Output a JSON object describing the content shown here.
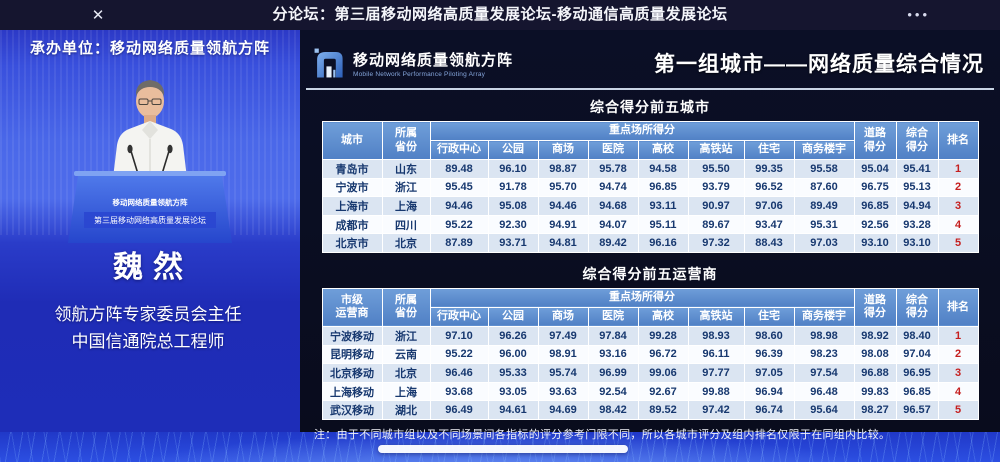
{
  "topbar": {
    "close_glyph": "✕",
    "title": "分论坛：第三届移动网络高质量发展论坛-移动通信高质量发展论坛",
    "more_glyph": "•••"
  },
  "left_panel": {
    "organizer_banner": "承办单位：移动网络质量领航方阵",
    "podium_logo_text": "移动网络质量领航方阵",
    "podium_banner": "第三届移动网络高质量发展论坛",
    "speaker_name": "魏然",
    "speaker_title_line1": "领航方阵专家委员会主任",
    "speaker_title_line2": "中国信通院总工程师"
  },
  "slide": {
    "logo": {
      "name": "移动网络质量领航方阵",
      "name_en": "Mobile Network Performance Piloting Array"
    },
    "title": "第一组城市——网络质量综合情况",
    "note": "注：由于不同城市组以及不同场景间各指标的评分参考门限不同，所以各城市评分及组内排名仅限于在同组内比较。",
    "tables": [
      {
        "title": "综合得分前五城市",
        "headers": {
          "entity": "城市",
          "province": "所属\n省份",
          "venues_group": "重点场所得分",
          "venues": [
            "行政中心",
            "公园",
            "商场",
            "医院",
            "高校",
            "高铁站",
            "住宅",
            "商务楼宇"
          ],
          "road": "道路\n得分",
          "total": "综合\n得分",
          "rank": "排名"
        },
        "rows": [
          [
            "青岛市",
            "山东",
            "89.48",
            "96.10",
            "98.87",
            "95.78",
            "94.58",
            "95.50",
            "99.35",
            "95.58",
            "95.04",
            "95.41",
            "1"
          ],
          [
            "宁波市",
            "浙江",
            "95.45",
            "91.78",
            "95.70",
            "94.74",
            "96.85",
            "93.79",
            "96.52",
            "87.60",
            "96.75",
            "95.13",
            "2"
          ],
          [
            "上海市",
            "上海",
            "94.46",
            "95.08",
            "94.46",
            "94.68",
            "93.11",
            "90.97",
            "97.06",
            "89.49",
            "96.85",
            "94.94",
            "3"
          ],
          [
            "成都市",
            "四川",
            "95.22",
            "92.30",
            "94.91",
            "94.07",
            "95.11",
            "89.67",
            "93.47",
            "95.31",
            "92.56",
            "93.28",
            "4"
          ],
          [
            "北京市",
            "北京",
            "87.89",
            "93.71",
            "94.81",
            "89.42",
            "96.16",
            "97.32",
            "88.43",
            "97.03",
            "93.10",
            "93.10",
            "5"
          ]
        ]
      },
      {
        "title": "综合得分前五运营商",
        "headers": {
          "entity": "市级\n运营商",
          "province": "所属\n省份",
          "venues_group": "重点场所得分",
          "venues": [
            "行政中心",
            "公园",
            "商场",
            "医院",
            "高校",
            "高铁站",
            "住宅",
            "商务楼宇"
          ],
          "road": "道路\n得分",
          "total": "综合\n得分",
          "rank": "排名"
        },
        "rows": [
          [
            "宁波移动",
            "浙江",
            "97.10",
            "96.26",
            "97.49",
            "97.84",
            "99.28",
            "98.93",
            "98.60",
            "98.98",
            "98.92",
            "98.40",
            "1"
          ],
          [
            "昆明移动",
            "云南",
            "95.22",
            "96.00",
            "98.91",
            "93.16",
            "96.72",
            "96.11",
            "96.39",
            "98.23",
            "98.08",
            "97.04",
            "2"
          ],
          [
            "北京移动",
            "北京",
            "96.46",
            "95.33",
            "95.74",
            "96.99",
            "99.06",
            "97.77",
            "97.05",
            "97.54",
            "96.88",
            "96.95",
            "3"
          ],
          [
            "上海移动",
            "上海",
            "93.68",
            "93.05",
            "93.63",
            "92.54",
            "92.67",
            "99.88",
            "96.94",
            "96.48",
            "99.83",
            "96.85",
            "4"
          ],
          [
            "武汉移动",
            "湖北",
            "96.49",
            "94.61",
            "94.69",
            "98.42",
            "89.52",
            "97.42",
            "96.74",
            "95.64",
            "98.27",
            "96.57",
            "5"
          ]
        ]
      }
    ]
  },
  "colors": {
    "topbar_bg": "#15152f",
    "stage_blue": "#3950dd",
    "slide_bg": "#0a0e22",
    "table_header_blue": "#5f8ecf",
    "row_alt_blue": "#dbe5f2",
    "cell_text_navy": "#17386f",
    "rank_red": "#c51f1f"
  }
}
